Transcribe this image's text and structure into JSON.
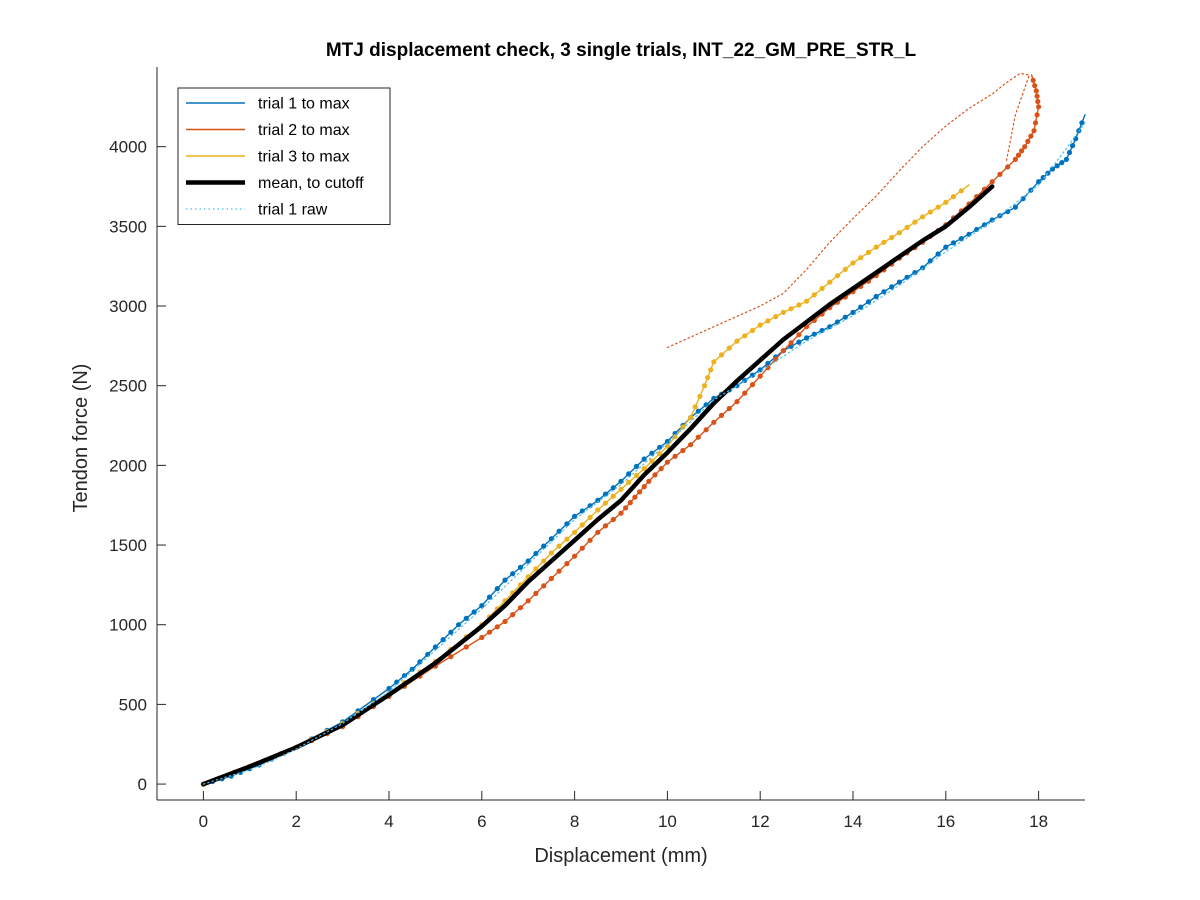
{
  "chart_data": {
    "type": "line",
    "title": "MTJ displacement check, 3 single trials, INT_22_GM_PRE_STR_L",
    "xlabel": "Displacement (mm)",
    "ylabel": "Tendon force (N)",
    "xlim": [
      -1,
      19
    ],
    "ylim": [
      -100,
      4500
    ],
    "xticks": [
      0,
      2,
      4,
      6,
      8,
      10,
      12,
      14,
      16,
      18
    ],
    "yticks": [
      0,
      500,
      1000,
      1500,
      2000,
      2500,
      3000,
      3500,
      4000
    ],
    "grid": false,
    "legend_location": "top-left",
    "series": [
      {
        "name": "trial 1 to max",
        "color": "#0072BD",
        "style": "solid",
        "markers": true,
        "x": [
          0,
          0.6,
          1.2,
          2,
          3,
          4,
          4.5,
          5,
          5.5,
          6,
          6.5,
          7,
          7.5,
          8,
          8.5,
          9,
          9.5,
          10,
          10.5,
          11,
          11.5,
          12,
          12.5,
          13,
          13.5,
          14,
          14.5,
          15,
          15.5,
          16,
          16.5,
          17,
          17.5,
          18,
          18.3,
          18.6,
          18.8,
          19
        ],
        "y": [
          0,
          50,
          120,
          230,
          390,
          600,
          720,
          860,
          1000,
          1120,
          1280,
          1400,
          1540,
          1680,
          1780,
          1900,
          2040,
          2150,
          2300,
          2420,
          2500,
          2600,
          2720,
          2800,
          2870,
          2960,
          3060,
          3150,
          3240,
          3370,
          3450,
          3540,
          3620,
          3780,
          3860,
          3920,
          4050,
          4200
        ]
      },
      {
        "name": "trial 2 to max",
        "color": "#D95319",
        "style": "solid",
        "markers": true,
        "x": [
          0,
          1,
          2,
          3,
          4,
          5,
          6,
          6.5,
          7,
          7.5,
          8,
          8.5,
          9,
          9.3,
          9.6,
          10,
          10.5,
          11,
          11.5,
          12,
          12.5,
          13,
          13.5,
          14,
          14.5,
          15,
          15.5,
          16,
          16.5,
          17,
          17.5,
          17.7,
          17.9,
          18,
          17.95,
          17.85
        ],
        "y": [
          0,
          110,
          230,
          360,
          550,
          740,
          920,
          1020,
          1150,
          1290,
          1430,
          1580,
          1700,
          1800,
          1900,
          2020,
          2130,
          2270,
          2400,
          2560,
          2720,
          2870,
          2990,
          3090,
          3190,
          3300,
          3400,
          3510,
          3640,
          3780,
          3920,
          4000,
          4100,
          4250,
          4350,
          4450
        ]
      },
      {
        "name": "trial 3 to max",
        "color": "#EDB120",
        "style": "solid",
        "markers": true,
        "x": [
          0,
          1,
          2,
          3,
          4,
          5,
          6,
          6.5,
          7,
          7.5,
          8,
          8.5,
          9,
          9.5,
          10,
          10.5,
          10.8,
          11,
          11.5,
          12,
          12.5,
          13,
          13.5,
          14,
          14.5,
          15,
          15.5,
          16,
          16.5
        ],
        "y": [
          0,
          110,
          230,
          380,
          570,
          770,
          1000,
          1150,
          1300,
          1450,
          1580,
          1720,
          1850,
          1980,
          2120,
          2300,
          2500,
          2650,
          2780,
          2880,
          2960,
          3030,
          3150,
          3270,
          3370,
          3460,
          3560,
          3650,
          3760
        ]
      },
      {
        "name": "mean, to cutoff",
        "color": "#000000",
        "style": "solid-thick",
        "markers": false,
        "x": [
          0,
          1,
          2,
          3,
          4,
          5,
          6,
          6.5,
          7,
          7.5,
          8,
          8.5,
          9,
          9.5,
          10,
          10.5,
          11,
          11.5,
          12,
          12.5,
          13,
          13.5,
          14,
          14.5,
          15,
          15.5,
          16,
          16.5,
          17
        ],
        "y": [
          0,
          110,
          230,
          370,
          560,
          760,
          990,
          1120,
          1270,
          1400,
          1530,
          1660,
          1780,
          1940,
          2080,
          2230,
          2390,
          2530,
          2660,
          2790,
          2900,
          3010,
          3110,
          3210,
          3310,
          3410,
          3500,
          3620,
          3750
        ]
      },
      {
        "name": "trial 1 raw",
        "color": "#4DBEEE",
        "style": "dotted",
        "markers": false,
        "x": [
          0,
          1,
          1.5,
          2,
          3,
          4,
          5,
          6,
          7,
          8,
          9,
          10,
          11,
          12,
          13,
          14,
          15,
          16,
          17,
          18,
          18.5,
          19
        ],
        "y": [
          0,
          90,
          150,
          220,
          380,
          580,
          840,
          1100,
          1380,
          1660,
          1880,
          2140,
          2410,
          2590,
          2780,
          2940,
          3130,
          3340,
          3530,
          3760,
          3950,
          4150
        ]
      },
      {
        "name": "",
        "color": "#D95319",
        "style": "dotted",
        "markers": false,
        "x": [
          10,
          11,
          12,
          12.5,
          13,
          13.5,
          14,
          14.5,
          15,
          15.5,
          16,
          16.5,
          17,
          17.3,
          17.6,
          17.8,
          17.5,
          17.3
        ],
        "y": [
          2740,
          2870,
          3000,
          3080,
          3230,
          3400,
          3550,
          3690,
          3850,
          4000,
          4130,
          4240,
          4330,
          4400,
          4460,
          4450,
          4200,
          3900
        ]
      }
    ]
  }
}
